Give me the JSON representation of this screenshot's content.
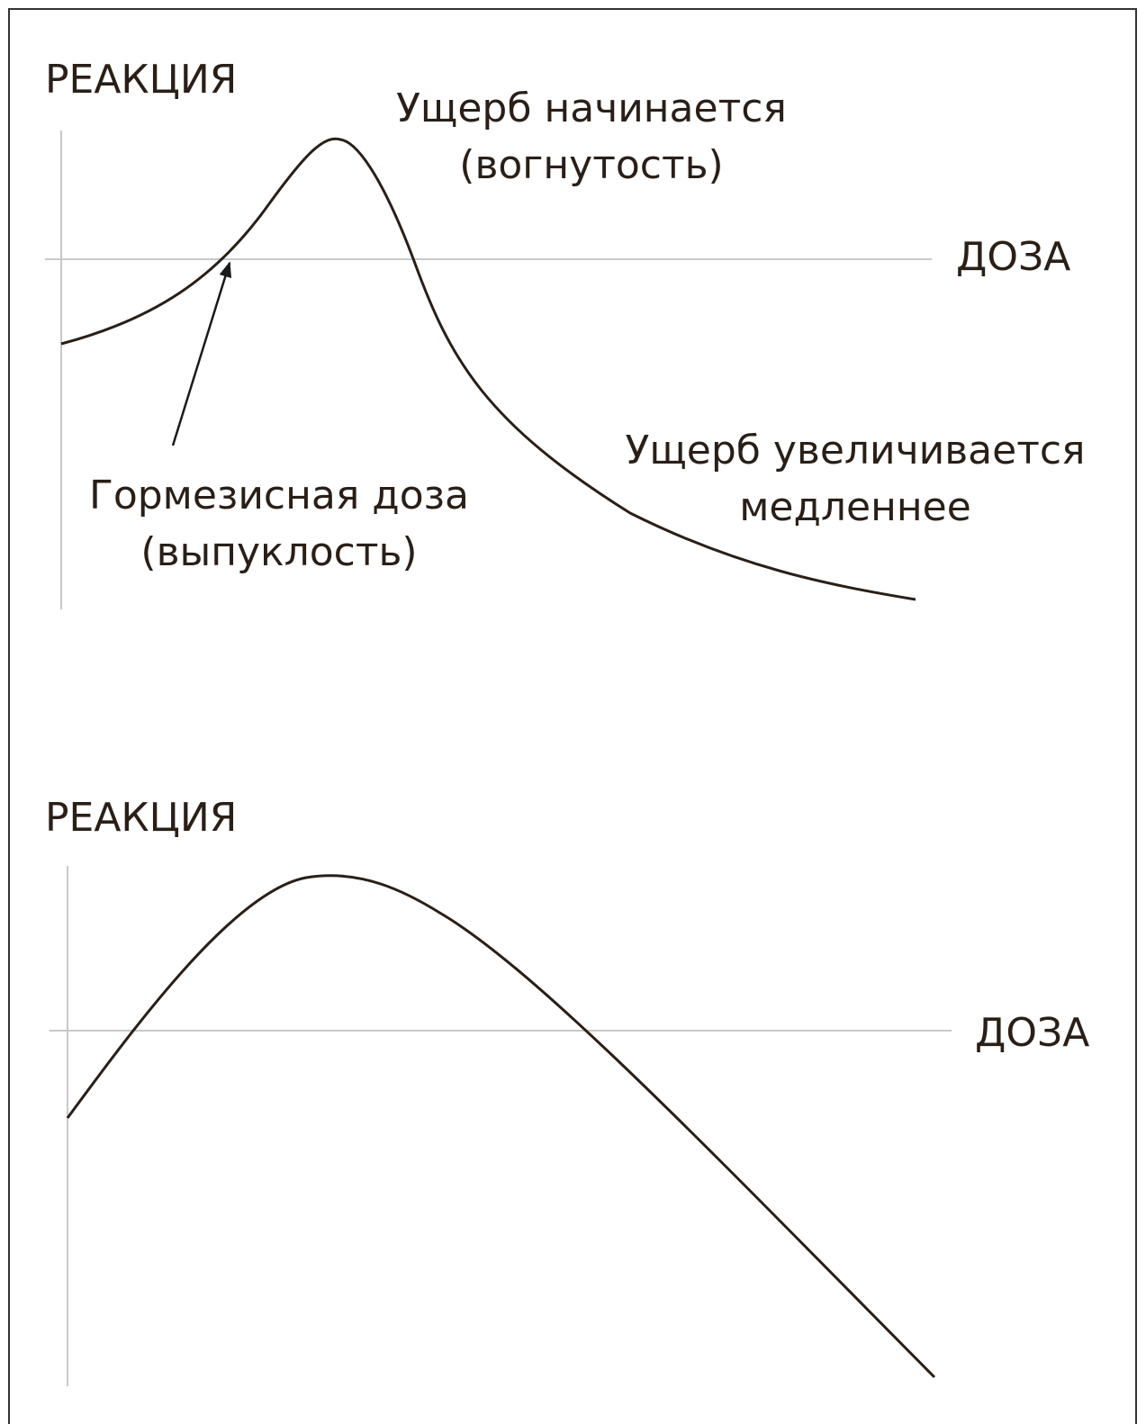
{
  "panels": [
    {
      "y_label": "РЕАКЦИЯ",
      "x_label": "ДОЗА",
      "annotations": [
        {
          "lines": [
            "Ущерб начинается",
            "(вогнутость)"
          ]
        },
        {
          "lines": [
            "Гормезисная доза",
            "(выпуклость)"
          ]
        },
        {
          "lines": [
            "Ущерб увеличивается",
            "медленнее"
          ]
        }
      ]
    },
    {
      "y_label": "РЕАКЦИЯ",
      "x_label": "ДОЗА"
    }
  ]
}
